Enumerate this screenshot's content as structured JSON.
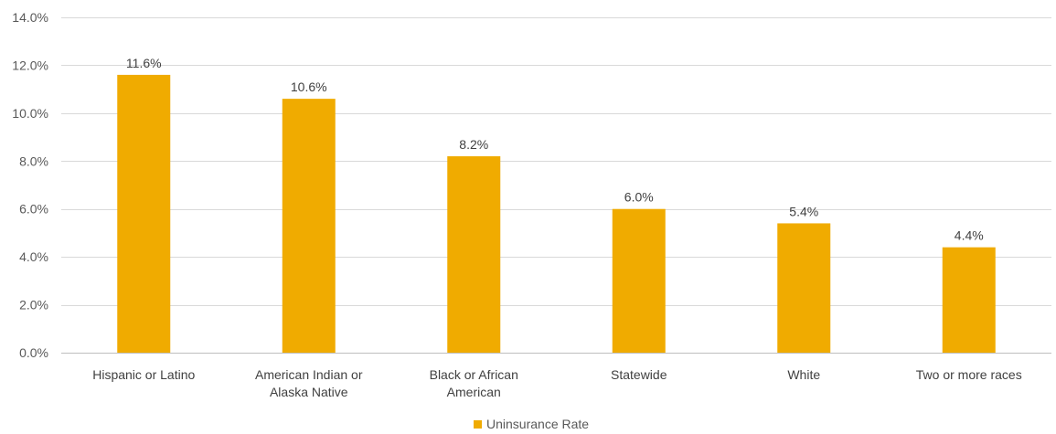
{
  "chart_data": {
    "type": "bar",
    "categories": [
      [
        "Hispanic or Latino"
      ],
      [
        "American Indian or",
        "Alaska Native"
      ],
      [
        "Black or African",
        "American"
      ],
      [
        "Statewide"
      ],
      [
        "White"
      ],
      [
        "Two or more races"
      ]
    ],
    "series": [
      {
        "name": "Uninsurance Rate",
        "values": [
          11.6,
          10.6,
          8.2,
          6.0,
          5.4,
          4.4
        ],
        "labels": [
          "11.6%",
          "10.6%",
          "8.2%",
          "6.0%",
          "5.4%",
          "4.4%"
        ],
        "color": "#f0ab00"
      }
    ],
    "ylim": [
      0,
      14
    ],
    "yticks": [
      0,
      2,
      4,
      6,
      8,
      10,
      12,
      14
    ],
    "ytick_labels": [
      "0.0%",
      "2.0%",
      "4.0%",
      "6.0%",
      "8.0%",
      "10.0%",
      "12.0%",
      "14.0%"
    ],
    "grid": true,
    "legend_position": "bottom-center",
    "gridline_color": "#d9d9d9"
  }
}
